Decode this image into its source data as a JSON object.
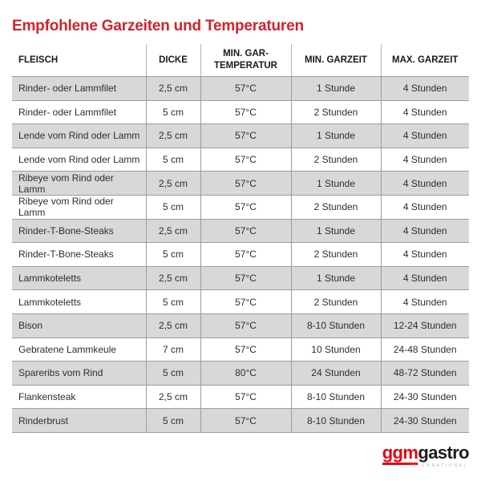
{
  "page": {
    "title": "Empfohlene Garzeiten und Temperaturen"
  },
  "colors": {
    "title_red": "#d2232a",
    "logo_red": "#e30613",
    "row_gray": "#d8d8d8",
    "border_gray": "#9c9c9c"
  },
  "table": {
    "columns": [
      "FLEISCH",
      "DICKE",
      "MIN. GAR-TEMPERATUR",
      "MIN. GARZEIT",
      "MAX. GARZEIT"
    ],
    "col_keys": [
      "fleisch",
      "dicke",
      "temp",
      "min",
      "max"
    ],
    "rows": [
      {
        "fleisch": "Rinder- oder Lammfilet",
        "dicke": "2,5 cm",
        "temp": "57°C",
        "min": "1 Stunde",
        "max": "4 Stunden"
      },
      {
        "fleisch": "Rinder- oder Lammfilet",
        "dicke": "5 cm",
        "temp": "57°C",
        "min": "2 Stunden",
        "max": "4 Stunden"
      },
      {
        "fleisch": "Lende vom Rind oder Lamm",
        "dicke": "2,5 cm",
        "temp": "57°C",
        "min": "1 Stunde",
        "max": "4 Stunden"
      },
      {
        "fleisch": "Lende vom Rind oder Lamm",
        "dicke": "5 cm",
        "temp": "57°C",
        "min": "2 Stunden",
        "max": "4 Stunden"
      },
      {
        "fleisch": "Ribeye vom Rind oder Lamm",
        "dicke": "2,5 cm",
        "temp": "57°C",
        "min": "1 Stunde",
        "max": "4 Stunden"
      },
      {
        "fleisch": "Ribeye vom Rind oder Lamm",
        "dicke": "5 cm",
        "temp": "57°C",
        "min": "2 Stunden",
        "max": "4 Stunden"
      },
      {
        "fleisch": "Rinder-T-Bone-Steaks",
        "dicke": "2,5 cm",
        "temp": "57°C",
        "min": "1 Stunde",
        "max": "4 Stunden"
      },
      {
        "fleisch": "Rinder-T-Bone-Steaks",
        "dicke": "5 cm",
        "temp": "57°C",
        "min": "2 Stunden",
        "max": "4 Stunden"
      },
      {
        "fleisch": "Lammkoteletts",
        "dicke": "2,5 cm",
        "temp": "57°C",
        "min": "1 Stunde",
        "max": "4 Stunden"
      },
      {
        "fleisch": "Lammkoteletts",
        "dicke": "5 cm",
        "temp": "57°C",
        "min": "2 Stunden",
        "max": "4 Stunden"
      },
      {
        "fleisch": "Bison",
        "dicke": "2,5 cm",
        "temp": "57°C",
        "min": "8-10 Stunden",
        "max": "12-24 Stunden"
      },
      {
        "fleisch": "Gebratene Lammkeule",
        "dicke": "7 cm",
        "temp": "57°C",
        "min": "10 Stunden",
        "max": "24-48 Stunden"
      },
      {
        "fleisch": "Spareribs vom Rind",
        "dicke": "5 cm",
        "temp": "80°C",
        "min": "24 Stunden",
        "max": "48-72 Stunden"
      },
      {
        "fleisch": "Flankensteak",
        "dicke": "2,5 cm",
        "temp": "57°C",
        "min": "8-10 Stunden",
        "max": "24-30 Stunden"
      },
      {
        "fleisch": "Rinderbrust",
        "dicke": "5 cm",
        "temp": "57°C",
        "min": "8-10 Stunden",
        "max": "24-30 Stunden"
      }
    ]
  },
  "logo": {
    "ggm": "ggm",
    "gastro": "gastro",
    "subtitle": "INTERNATIONAL"
  }
}
